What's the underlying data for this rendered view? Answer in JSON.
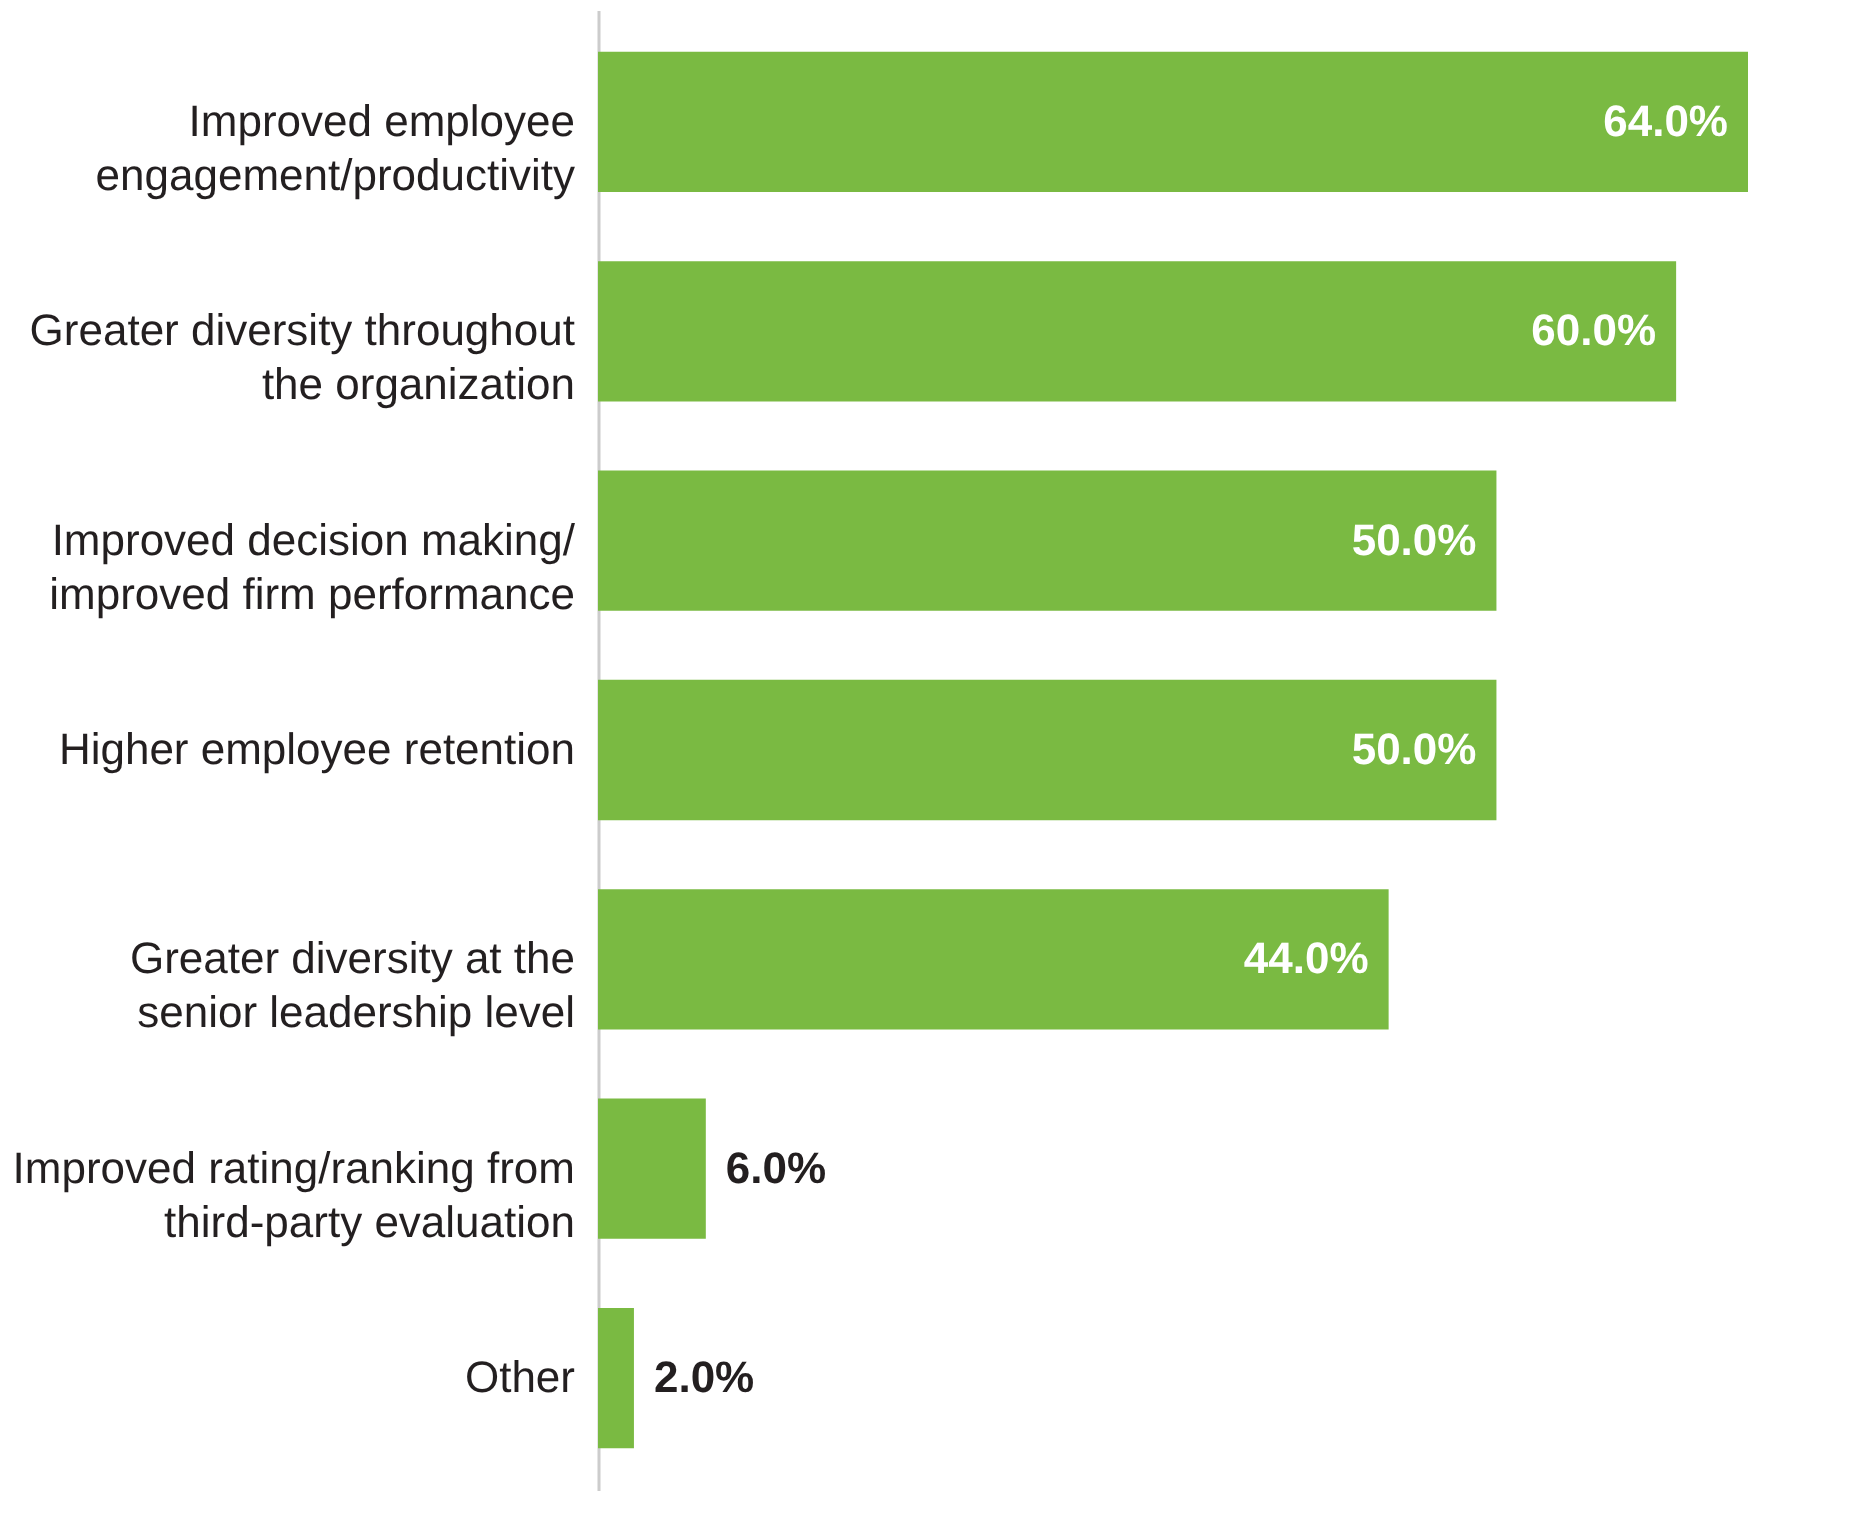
{
  "chart_data": {
    "type": "bar",
    "orientation": "horizontal",
    "categories": [
      "Improved employee engagement/productivity",
      "Greater diversity throughout the organization",
      "Improved decision making/ improved firm performance",
      "Higher employee retention",
      "Greater diversity at the senior leadership level",
      "Improved rating/ranking from third-party evaluation",
      "Other"
    ],
    "values": [
      64.0,
      60.0,
      50.0,
      50.0,
      44.0,
      6.0,
      2.0
    ],
    "value_labels": [
      "64.0%",
      "60.0%",
      "50.0%",
      "50.0%",
      "44.0%",
      "6.0%",
      "2.0%"
    ],
    "color": "#7aba42",
    "xlim": [
      0,
      64
    ],
    "tick_labels": "y"
  }
}
